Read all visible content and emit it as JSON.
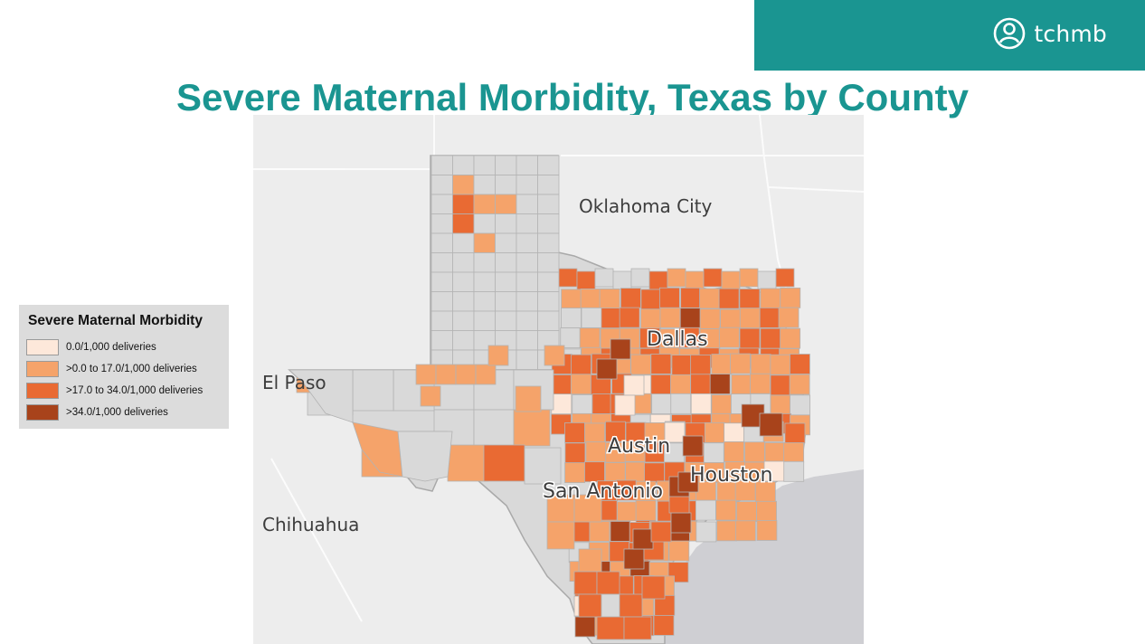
{
  "header": {
    "brand_name": "tchmb",
    "logo_icon": "person-circle-icon"
  },
  "title": "Severe Maternal Morbidity, Texas by County",
  "legend": {
    "title": "Severe Maternal Morbidity",
    "items": [
      {
        "label": "0.0/1,000 deliveries",
        "color": "#fde8da"
      },
      {
        "label": ">0.0 to 17.0/1,000 deliveries",
        "color": "#f5a36a"
      },
      {
        "label": ">17.0 to 34.0/1,000 deliveries",
        "color": "#e96a33"
      },
      {
        "label": ">34.0/1,000 deliveries",
        "color": "#a8431b"
      }
    ]
  },
  "map": {
    "places": {
      "oklahoma_city": "Oklahoma City",
      "dallas": "Dallas",
      "el_paso": "El Paso",
      "austin": "Austin",
      "san_antonio": "San Antonio",
      "houston": "Houston",
      "chihuahua": "Chihuahua"
    },
    "colors": {
      "land_outside": "#ededed",
      "county_nodata": "#d9d9d9",
      "county_border": "#b3b3b3",
      "gulf": "#cfcfd3"
    }
  }
}
